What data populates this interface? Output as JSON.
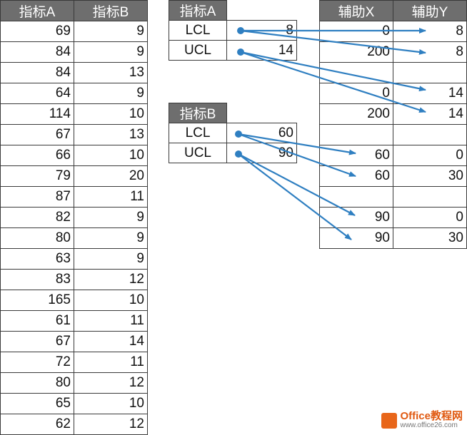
{
  "main_table": {
    "headers": [
      "指标A",
      "指标B"
    ],
    "rows": [
      [
        "69",
        "9"
      ],
      [
        "84",
        "9"
      ],
      [
        "84",
        "13"
      ],
      [
        "64",
        "9"
      ],
      [
        "114",
        "10"
      ],
      [
        "67",
        "13"
      ],
      [
        "66",
        "10"
      ],
      [
        "79",
        "20"
      ],
      [
        "87",
        "11"
      ],
      [
        "82",
        "9"
      ],
      [
        "80",
        "9"
      ],
      [
        "63",
        "9"
      ],
      [
        "83",
        "12"
      ],
      [
        "165",
        "10"
      ],
      [
        "61",
        "11"
      ],
      [
        "67",
        "14"
      ],
      [
        "72",
        "11"
      ],
      [
        "80",
        "12"
      ],
      [
        "65",
        "10"
      ],
      [
        "62",
        "12"
      ]
    ]
  },
  "limits_a": {
    "header": "指标A",
    "rows": [
      {
        "label": "LCL",
        "value": "8"
      },
      {
        "label": "UCL",
        "value": "14"
      }
    ]
  },
  "limits_b": {
    "header": "指标B",
    "rows": [
      {
        "label": "LCL",
        "value": "60"
      },
      {
        "label": "UCL",
        "value": "90"
      }
    ]
  },
  "helper_table": {
    "headers": [
      "辅助X",
      "辅助Y"
    ],
    "rows": [
      [
        "0",
        "8"
      ],
      [
        "200",
        "8"
      ],
      [
        "",
        ""
      ],
      [
        "0",
        "14"
      ],
      [
        "200",
        "14"
      ],
      [
        "",
        ""
      ],
      [
        "60",
        "0"
      ],
      [
        "60",
        "30"
      ],
      [
        "",
        ""
      ],
      [
        "90",
        "0"
      ],
      [
        "90",
        "30"
      ]
    ]
  },
  "colors": {
    "header_bg": "#6e6e6e",
    "arrow": "#2f7fc1",
    "logo": "#e05a12"
  },
  "logo": {
    "name": "Office教程网",
    "url": "www.office26.com"
  }
}
